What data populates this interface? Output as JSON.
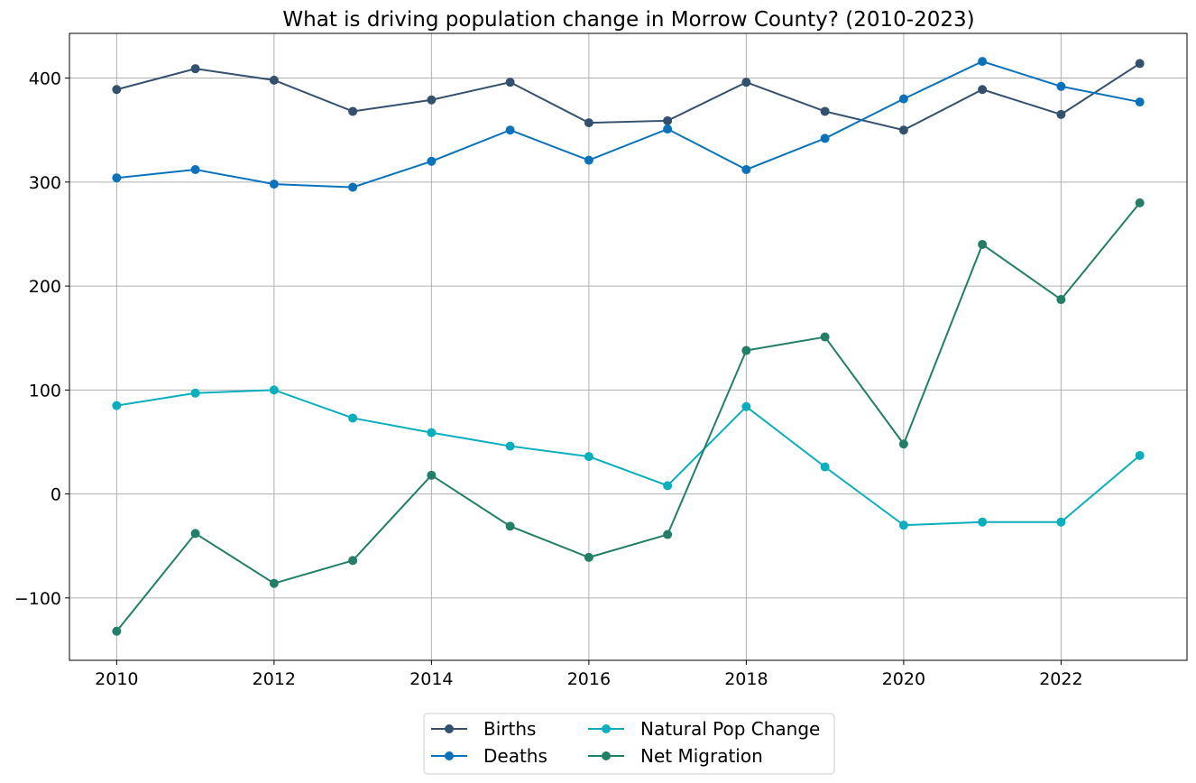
{
  "chart_data": {
    "type": "line",
    "title": "What is driving population change in Morrow County? (2010-2023)",
    "xlabel": "",
    "ylabel": "",
    "x": [
      2010,
      2011,
      2012,
      2013,
      2014,
      2015,
      2016,
      2017,
      2018,
      2019,
      2020,
      2021,
      2022,
      2023
    ],
    "xlim": [
      2009.4,
      2023.6
    ],
    "ylim": [
      -160,
      443
    ],
    "x_ticks": [
      2010,
      2012,
      2014,
      2016,
      2018,
      2020,
      2022
    ],
    "y_ticks": [
      -100,
      0,
      100,
      200,
      300,
      400
    ],
    "y_tick_labels": [
      "−100",
      "0",
      "100",
      "200",
      "300",
      "400"
    ],
    "grid": true,
    "legend_position": "bottom-center",
    "series": [
      {
        "name": "Births",
        "color": "#34506f",
        "values": [
          389,
          409,
          398,
          368,
          379,
          396,
          357,
          359,
          396,
          368,
          350,
          389,
          365,
          414
        ]
      },
      {
        "name": "Deaths",
        "color": "#0a72bb",
        "values": [
          304,
          312,
          298,
          295,
          320,
          350,
          321,
          351,
          312,
          342,
          380,
          416,
          392,
          377
        ]
      },
      {
        "name": "Natural Pop Change",
        "color": "#0aaebd",
        "values": [
          85,
          97,
          100,
          73,
          59,
          46,
          36,
          8,
          84,
          26,
          -30,
          -27,
          -27,
          37
        ]
      },
      {
        "name": "Net Migration",
        "color": "#237e68",
        "values": [
          -132,
          -38,
          -86,
          -64,
          18,
          -31,
          -61,
          -39,
          138,
          151,
          48,
          240,
          187,
          280
        ]
      }
    ]
  }
}
